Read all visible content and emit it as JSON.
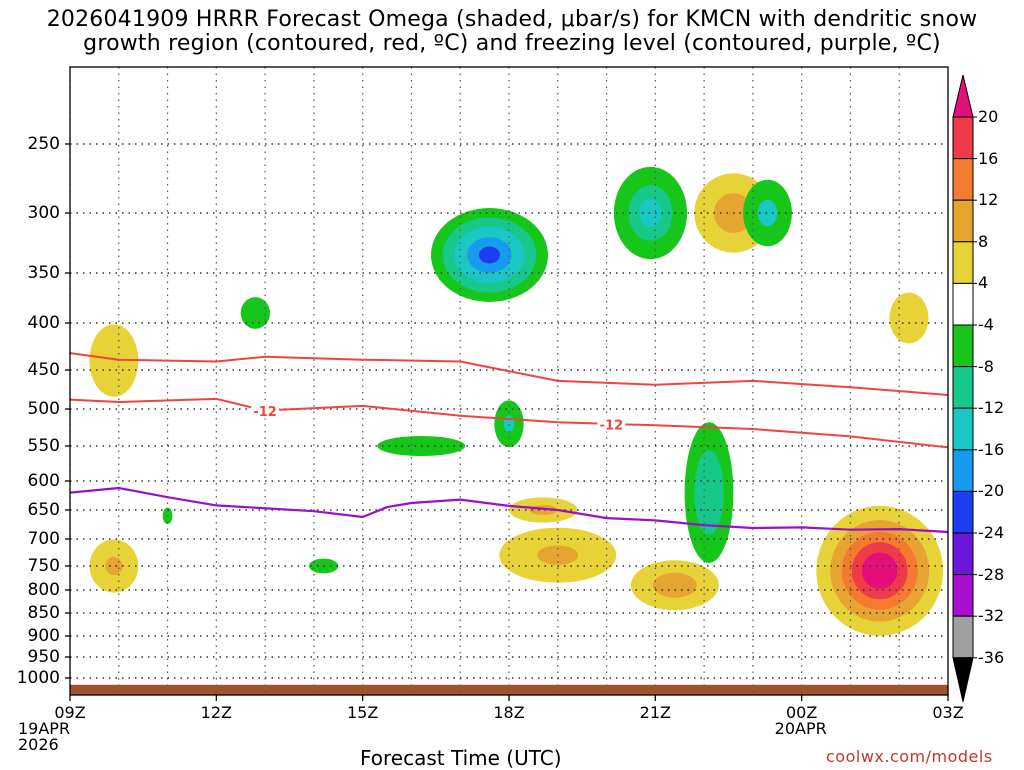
{
  "title_line1": "2026041909 HRRR Forecast Omega (shaded, μbar/s) for KMCN with dendritic snow",
  "title_line2": "growth region (contoured, red, ºC) and freezing level (contoured, purple, ºC)",
  "xaxis_title": "Forecast Time (UTC)",
  "credit": "coolwx.com/models",
  "chart_data": {
    "type": "heatmap",
    "title": "2026041909 HRRR Forecast Omega (shaded, μbar/s) for KMCN with dendritic snow growth region (contoured, red, ºC) and freezing level (contoured, purple, ºC)",
    "xlabel": "Forecast Time (UTC)",
    "ylabel": "Pressure (hPa)",
    "x_hours": [
      0,
      3,
      6,
      9,
      12,
      15,
      18
    ],
    "x_tick_labels": [
      "09Z",
      "12Z",
      "15Z",
      "18Z",
      "21Z",
      "00Z",
      "03Z"
    ],
    "x_sub_labels": [
      {
        "hour": 0,
        "lines": [
          "19APR",
          "2026"
        ]
      },
      {
        "hour": 15,
        "lines": [
          "20APR"
        ]
      }
    ],
    "y_levels": [
      250,
      300,
      350,
      400,
      450,
      500,
      550,
      600,
      650,
      700,
      750,
      800,
      850,
      900,
      950,
      1000
    ],
    "ylim": [
      1020,
      200
    ],
    "colorbar": {
      "levels": [
        "20",
        "16",
        "12",
        "8",
        "4",
        "-4",
        "-8",
        "-12",
        "-16",
        "-20",
        "-24",
        "-28",
        "-32",
        "-36"
      ],
      "colors": [
        "#ef3a4a",
        "#f47a30",
        "#e8a431",
        "#e7d237",
        "#ffffff",
        "#17c61b",
        "#17c88a",
        "#1ac7c5",
        "#179bf1",
        "#1e3cf2",
        "#6b17d9",
        "#a80fd1",
        "#a0a0a0"
      ],
      "top_arrow_color": "#e3107a",
      "bottom_arrow_color": "#000000"
    },
    "shaded_regions": [
      {
        "hour": 16.6,
        "p": 760,
        "dh": 1.3,
        "dp": 250,
        "levels": [
          {
            "c": "#e7d237",
            "s": 1.0
          },
          {
            "c": "#e8a431",
            "s": 0.78
          },
          {
            "c": "#f47a30",
            "s": 0.6
          },
          {
            "c": "#ef3a4a",
            "s": 0.44
          },
          {
            "c": "#e3107a",
            "s": 0.28
          }
        ]
      },
      {
        "hour": 17.2,
        "p": 395,
        "dh": 0.4,
        "dp": 50,
        "levels": [
          {
            "c": "#e7d237",
            "s": 1.0
          }
        ]
      },
      {
        "hour": 20.9,
        "p": 690,
        "dh": 0.85,
        "dp": 160,
        "levels": [
          {
            "c": "#e7d237",
            "s": 1.0
          },
          {
            "c": "#e8a431",
            "s": 0.78
          },
          {
            "c": "#f47a30",
            "s": 0.6
          },
          {
            "c": "#ef3a4a",
            "s": 0.35
          }
        ]
      },
      {
        "hour": 12.4,
        "p": 790,
        "dh": 0.9,
        "dp": 100,
        "levels": [
          {
            "c": "#e7d237",
            "s": 1.0
          },
          {
            "c": "#e8a431",
            "s": 0.5
          }
        ]
      },
      {
        "hour": 10.0,
        "p": 730,
        "dh": 1.2,
        "dp": 100,
        "levels": [
          {
            "c": "#e7d237",
            "s": 1.0
          },
          {
            "c": "#e8a431",
            "s": 0.35
          }
        ]
      },
      {
        "hour": 9.7,
        "p": 650,
        "dh": 0.7,
        "dp": 40,
        "levels": [
          {
            "c": "#e7d237",
            "s": 1.0
          },
          {
            "c": "#e8a431",
            "s": 0.4
          }
        ]
      },
      {
        "hour": 0.9,
        "p": 750,
        "dh": 0.5,
        "dp": 100,
        "levels": [
          {
            "c": "#e7d237",
            "s": 1.0
          },
          {
            "c": "#e8a431",
            "s": 0.35
          }
        ]
      },
      {
        "hour": 0.9,
        "p": 440,
        "dh": 0.5,
        "dp": 80,
        "levels": [
          {
            "c": "#e7d237",
            "s": 1.0
          }
        ]
      },
      {
        "hour": 13.6,
        "p": 300,
        "dh": 0.8,
        "dp": 60,
        "levels": [
          {
            "c": "#e7d237",
            "s": 1.0
          },
          {
            "c": "#e8a431",
            "s": 0.5
          }
        ]
      },
      {
        "hour": 8.6,
        "p": 335,
        "dh": 1.2,
        "dp": 80,
        "levels": [
          {
            "c": "#17c61b",
            "s": 1.0
          },
          {
            "c": "#17c88a",
            "s": 0.8
          },
          {
            "c": "#1ac7c5",
            "s": 0.6
          },
          {
            "c": "#179bf1",
            "s": 0.38
          },
          {
            "c": "#1e3cf2",
            "s": 0.18
          }
        ]
      },
      {
        "hour": 11.9,
        "p": 300,
        "dh": 0.75,
        "dp": 70,
        "levels": [
          {
            "c": "#17c61b",
            "s": 1.0
          },
          {
            "c": "#17c88a",
            "s": 0.6
          },
          {
            "c": "#1ac7c5",
            "s": 0.3
          }
        ]
      },
      {
        "hour": 14.3,
        "p": 300,
        "dh": 0.5,
        "dp": 50,
        "levels": [
          {
            "c": "#17c61b",
            "s": 1.0
          },
          {
            "c": "#1ac7c5",
            "s": 0.4
          }
        ]
      },
      {
        "hour": 13.1,
        "p": 620,
        "dh": 0.5,
        "dp": 220,
        "levels": [
          {
            "c": "#17c61b",
            "s": 1.0
          },
          {
            "c": "#17c88a",
            "s": 0.6
          }
        ]
      },
      {
        "hour": 9.0,
        "p": 520,
        "dh": 0.3,
        "dp": 60,
        "levels": [
          {
            "c": "#17c61b",
            "s": 1.0
          },
          {
            "c": "#1ac7c5",
            "s": 0.35
          }
        ]
      },
      {
        "hour": 7.2,
        "p": 550,
        "dh": 0.9,
        "dp": 25,
        "levels": [
          {
            "c": "#17c61b",
            "s": 1.0
          }
        ]
      },
      {
        "hour": 3.8,
        "p": 390,
        "dh": 0.3,
        "dp": 30,
        "levels": [
          {
            "c": "#17c61b",
            "s": 1.0
          }
        ]
      },
      {
        "hour": 5.2,
        "p": 750,
        "dh": 0.3,
        "dp": 25,
        "levels": [
          {
            "c": "#17c61b",
            "s": 1.0
          }
        ]
      },
      {
        "hour": 2.0,
        "p": 660,
        "dh": 0.1,
        "dp": 25,
        "levels": [
          {
            "c": "#17c61b",
            "s": 1.0
          }
        ]
      }
    ],
    "dgz_lines": [
      {
        "label": "",
        "points": [
          [
            0,
            432
          ],
          [
            1,
            439
          ],
          [
            3,
            441
          ],
          [
            4,
            436
          ],
          [
            6,
            439
          ],
          [
            8,
            441
          ],
          [
            10,
            464
          ],
          [
            12,
            469
          ],
          [
            14,
            464
          ],
          [
            16,
            472
          ],
          [
            18,
            482
          ]
        ]
      },
      {
        "label": "-12",
        "label_positions": [
          [
            4.0,
            503
          ],
          [
            11.1,
            521
          ]
        ],
        "points": [
          [
            0,
            488
          ],
          [
            1,
            491
          ],
          [
            3,
            487
          ],
          [
            4,
            502
          ],
          [
            6,
            496
          ],
          [
            8,
            509
          ],
          [
            10,
            518
          ],
          [
            12,
            522
          ],
          [
            14,
            527
          ],
          [
            16,
            537
          ],
          [
            18,
            552
          ]
        ]
      }
    ],
    "freezing_level": {
      "points": [
        [
          0,
          620
        ],
        [
          1,
          612
        ],
        [
          2,
          628
        ],
        [
          3,
          642
        ],
        [
          5,
          652
        ],
        [
          6,
          662
        ],
        [
          6.5,
          645
        ],
        [
          7,
          638
        ],
        [
          8,
          632
        ],
        [
          9,
          643
        ],
        [
          10,
          650
        ],
        [
          11,
          664
        ],
        [
          12,
          668
        ],
        [
          13,
          676
        ],
        [
          14,
          681
        ],
        [
          15,
          680
        ],
        [
          16,
          684
        ],
        [
          17,
          683
        ],
        [
          18,
          688
        ]
      ]
    },
    "surface_pressure": 1008
  }
}
